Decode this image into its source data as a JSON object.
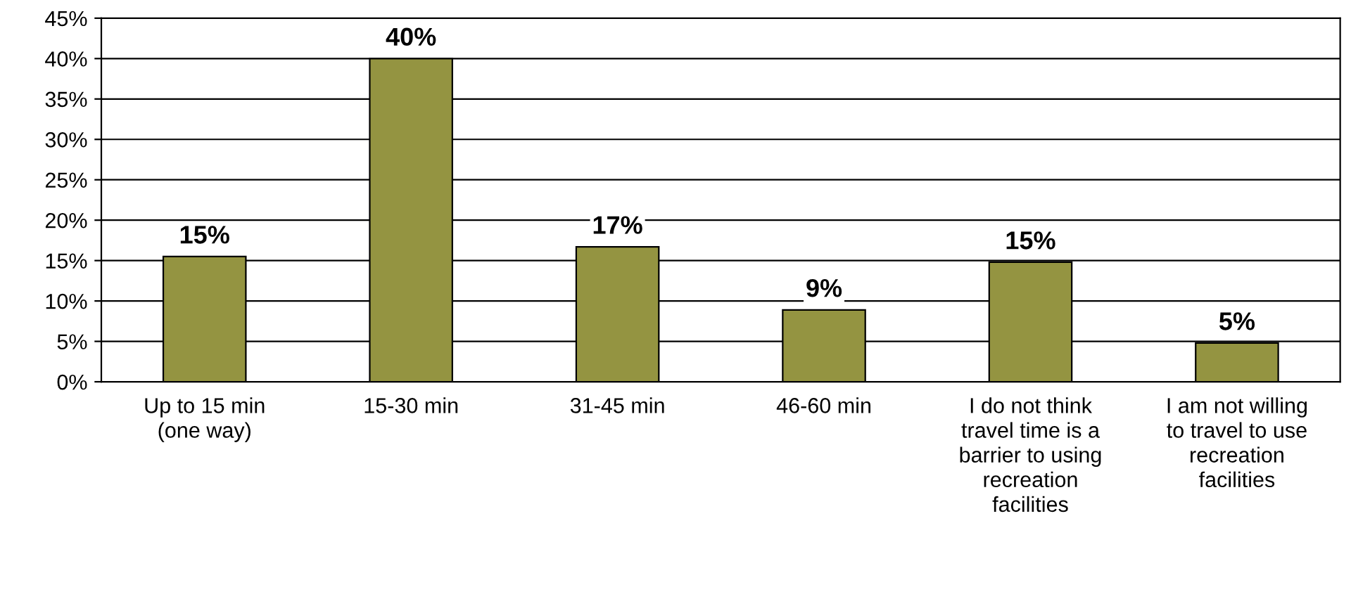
{
  "chart_data": {
    "type": "bar",
    "categories": [
      "Up to 15 min\n(one way)",
      "15-30 min",
      "31-45 min",
      "46-60 min",
      "I do not think\ntravel time is a\nbarrier to using\nrecreation\nfacilities",
      "I am not willing\nto travel to use\nrecreation\nfacilities"
    ],
    "values": [
      15.5,
      40,
      16.7,
      8.9,
      14.8,
      4.8
    ],
    "value_labels": [
      "15%",
      "40%",
      "17%",
      "9%",
      "15%",
      "5%"
    ],
    "color": "#949441",
    "ylim": [
      0,
      45
    ],
    "yticks": [
      {
        "value": 0,
        "label": "0%"
      },
      {
        "value": 5,
        "label": "5%"
      },
      {
        "value": 10,
        "label": "10%"
      },
      {
        "value": 15,
        "label": "15%"
      },
      {
        "value": 20,
        "label": "20%"
      },
      {
        "value": 25,
        "label": "25%"
      },
      {
        "value": 30,
        "label": "30%"
      },
      {
        "value": 35,
        "label": "35%"
      },
      {
        "value": 40,
        "label": "40%"
      },
      {
        "value": 45,
        "label": "45%"
      }
    ],
    "grid": "y",
    "legend": false
  }
}
